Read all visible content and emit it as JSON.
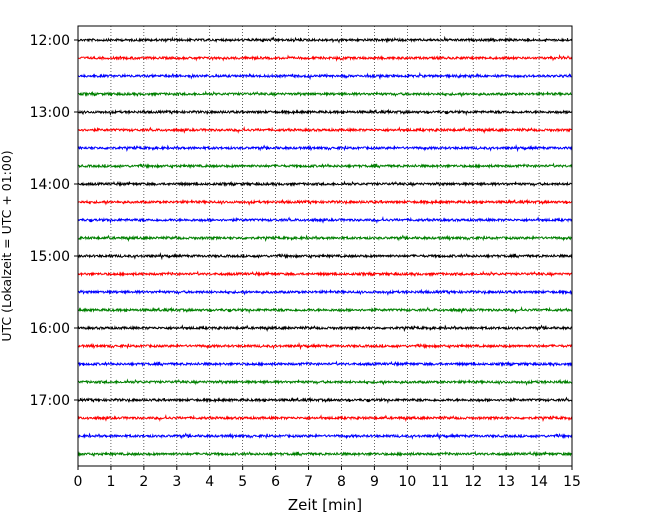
{
  "chart_data": {
    "type": "line",
    "title": "",
    "xlabel": "Zeit  [min]",
    "ylabel": "UTC (Lokalzeit = UTC + 01:00)",
    "xlim": [
      0,
      15
    ],
    "x_ticks": [
      "0",
      "1",
      "2",
      "3",
      "4",
      "5",
      "6",
      "7",
      "8",
      "9",
      "10",
      "11",
      "12",
      "13",
      "14",
      "15"
    ],
    "y_tick_labels": [
      "12:00",
      "13:00",
      "14:00",
      "15:00",
      "16:00",
      "17:00"
    ],
    "grid": {
      "x": true,
      "y": false,
      "style": "dotted"
    },
    "trace_colors": [
      "#000000",
      "#ff0000",
      "#0000ff",
      "#008000"
    ],
    "trace_start_times": [
      "12:00",
      "12:15",
      "12:30",
      "12:45",
      "13:00",
      "13:15",
      "13:30",
      "13:45",
      "14:00",
      "14:15",
      "14:30",
      "14:45",
      "15:00",
      "15:15",
      "15:30",
      "15:45",
      "16:00",
      "16:15",
      "16:30",
      "16:45",
      "17:00",
      "17:15",
      "17:30",
      "17:45"
    ],
    "trace_duration_min": 15
  }
}
